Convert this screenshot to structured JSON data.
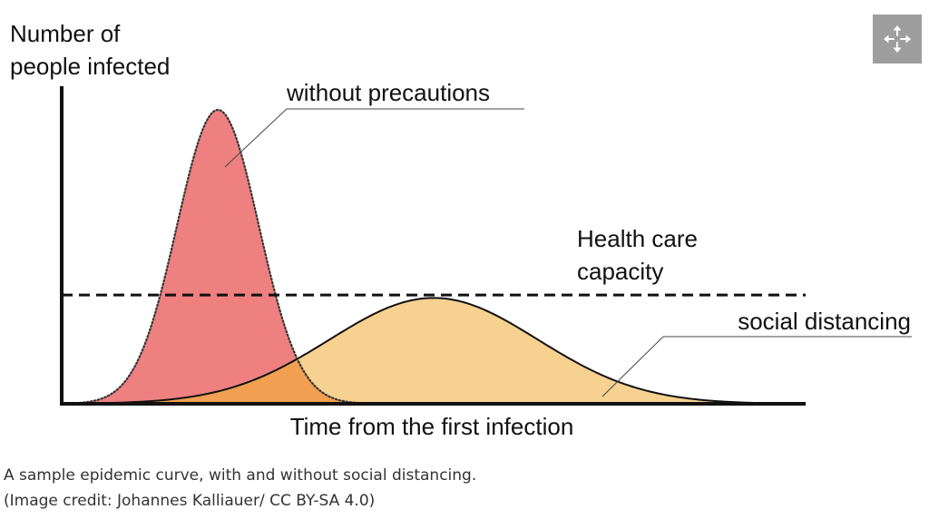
{
  "chart_data": {
    "type": "area",
    "ylabel_lines": [
      "Number of",
      "people infected"
    ],
    "xlabel": "Time from the first infection",
    "series": [
      {
        "name": "without precautions",
        "shape": "gaussian",
        "peak_x": 0.21,
        "peak_y": 1.0,
        "spread": 0.055,
        "color": "#ee8080",
        "outline": "dotted"
      },
      {
        "name": "social distancing",
        "shape": "gaussian",
        "peak_x": 0.5,
        "peak_y": 0.36,
        "spread": 0.14,
        "color": "#f7d190",
        "outline": "solid"
      }
    ],
    "overlap_color": "#f0a050",
    "threshold": {
      "label_lines": [
        "Health care",
        "capacity"
      ],
      "y": 0.37,
      "style": "dashed"
    },
    "xlim": [
      0,
      1
    ],
    "ylim": [
      0,
      1.04
    ],
    "grid": false,
    "legend": "none"
  },
  "expand_button": {
    "icon": "expand-arrows-icon"
  },
  "caption": {
    "line1": "A sample epidemic curve, with and without social distancing.",
    "line2": "(Image credit: Johannes Kalliauer/ CC BY-SA 4.0)"
  }
}
